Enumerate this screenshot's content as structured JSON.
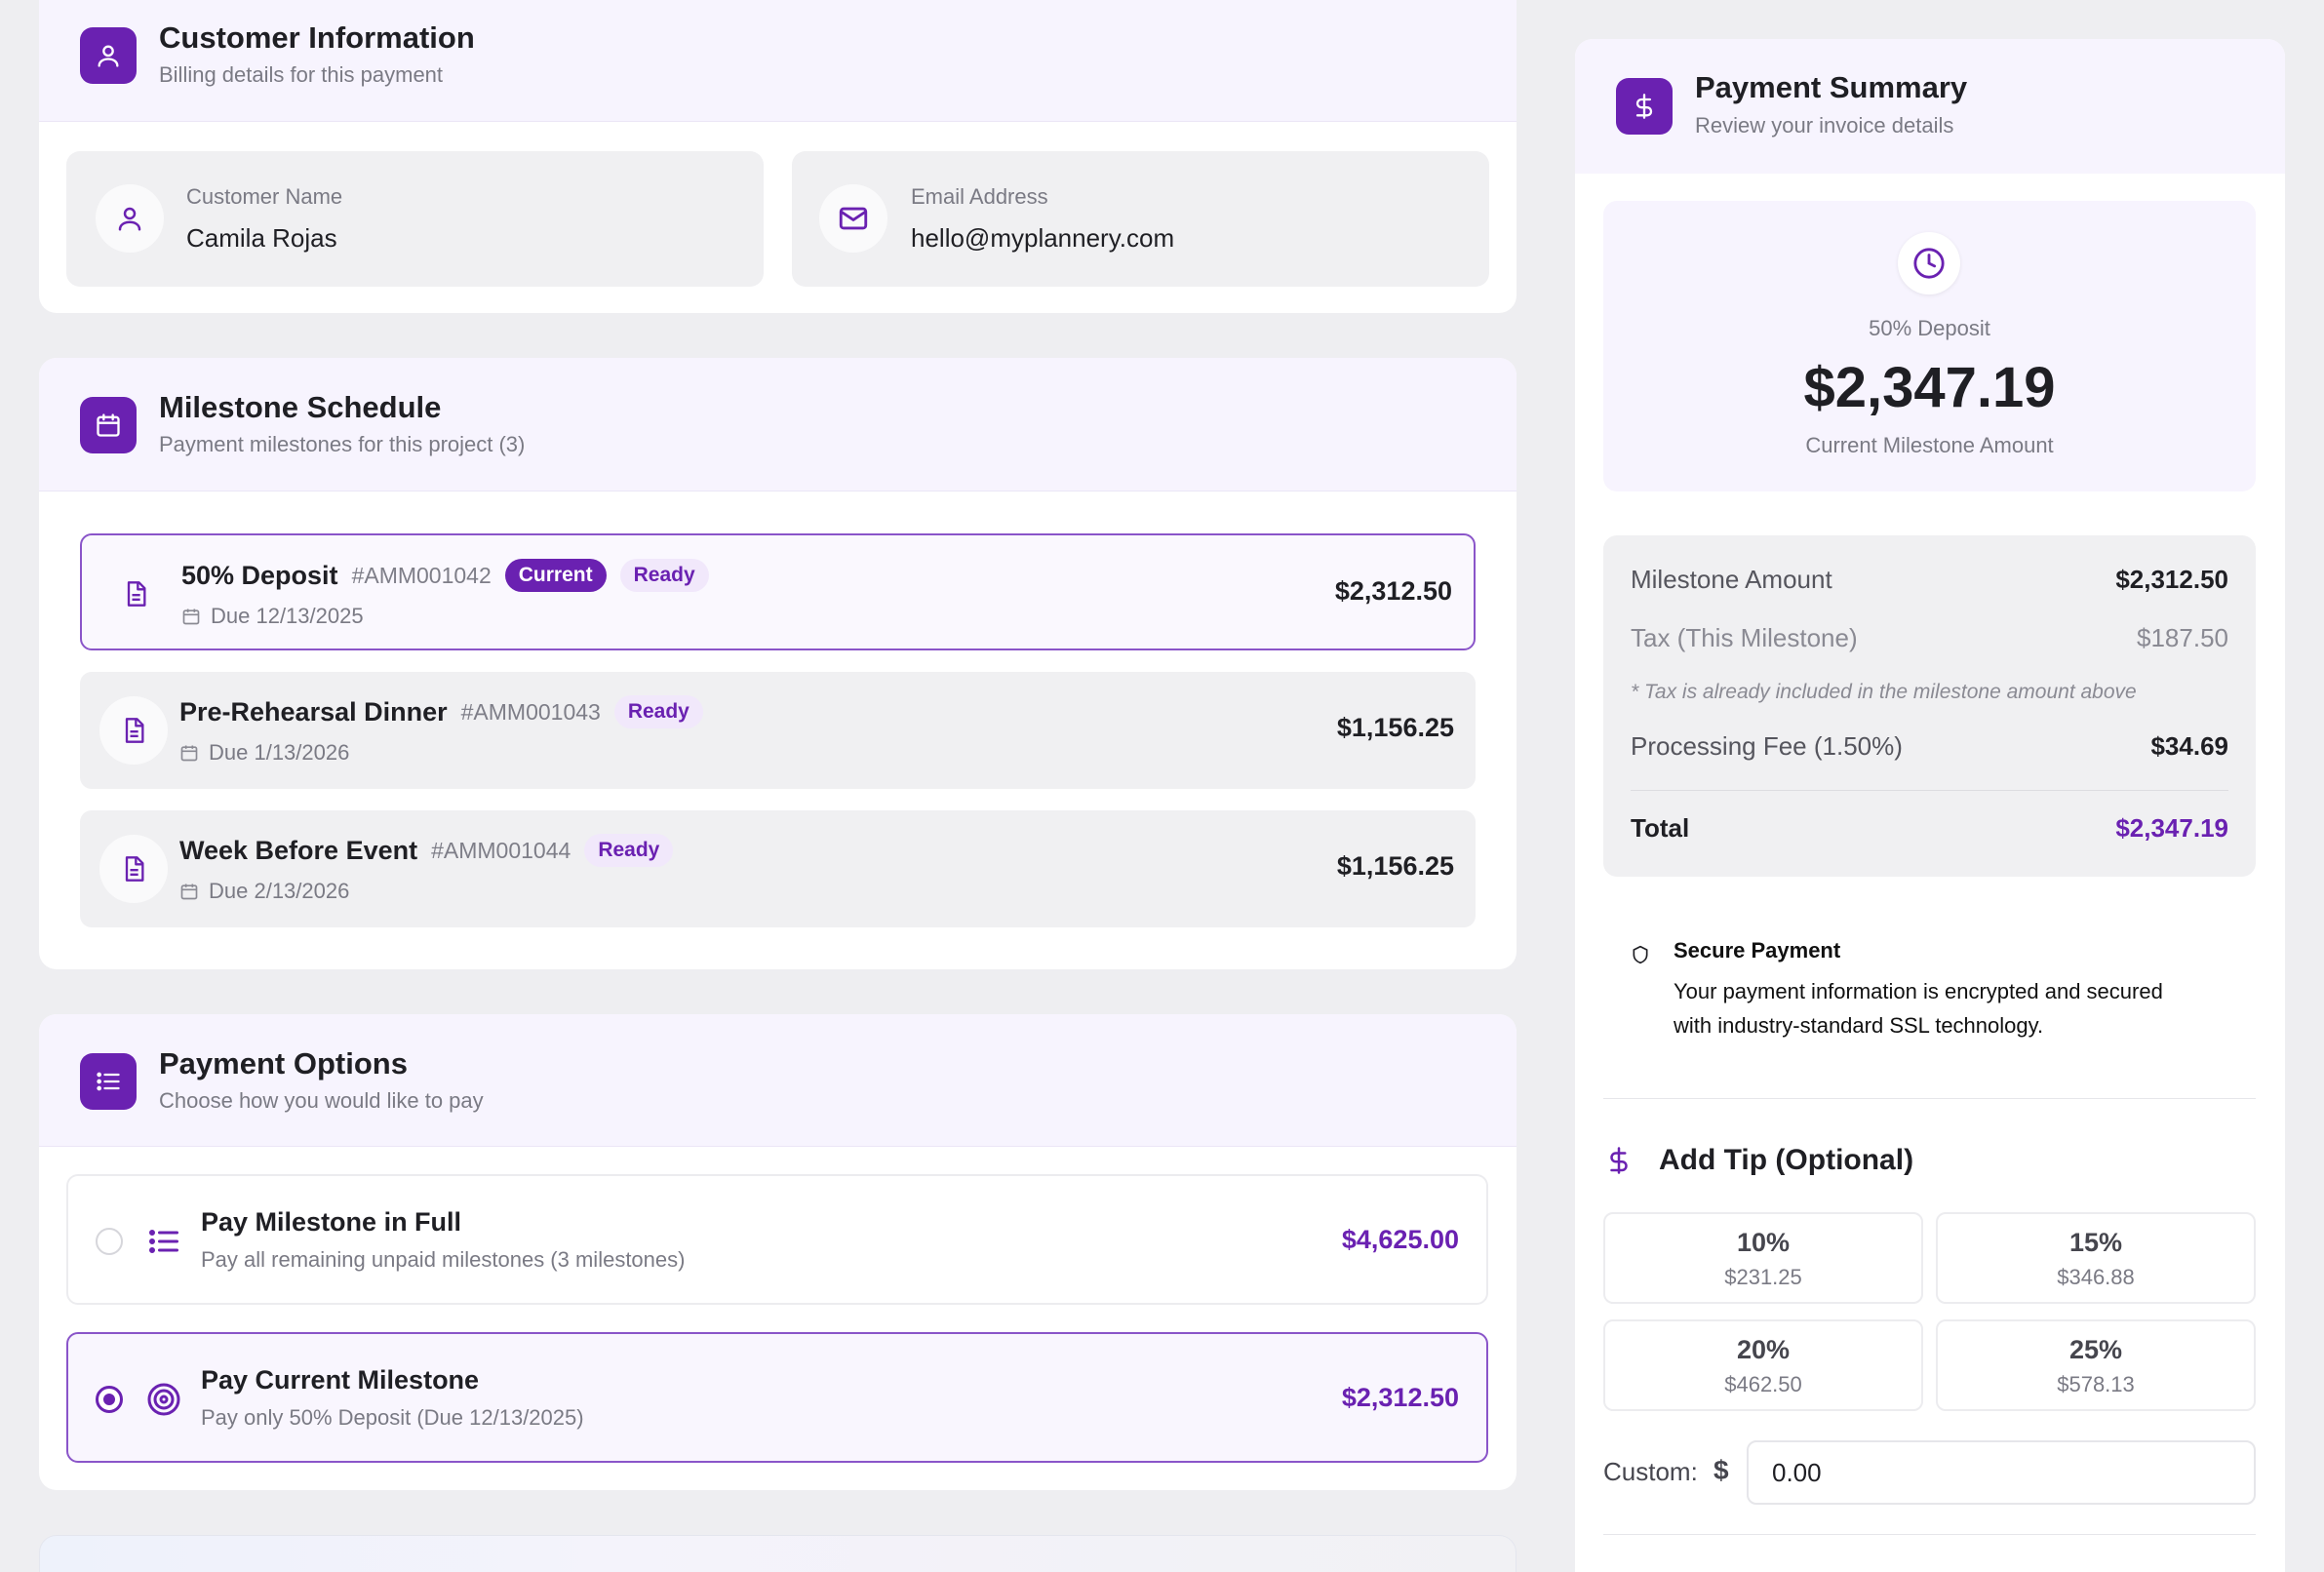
{
  "customer": {
    "title": "Customer Information",
    "subtitle": "Billing details for this payment",
    "name_label": "Customer Name",
    "name_value": "Camila Rojas",
    "email_label": "Email Address",
    "email_value": "hello@myplannery.com"
  },
  "milestones": {
    "title": "Milestone Schedule",
    "subtitle": "Payment milestones for this project (3)",
    "items": [
      {
        "name": "50% Deposit",
        "code": "#AMM001042",
        "badge_current": "Current",
        "badge_status": "Ready",
        "due": "Due 12/13/2025",
        "amount": "$2,312.50"
      },
      {
        "name": "Pre-Rehearsal Dinner",
        "code": "#AMM001043",
        "badge_status": "Ready",
        "due": "Due 1/13/2026",
        "amount": "$1,156.25"
      },
      {
        "name": "Week Before Event",
        "code": "#AMM001044",
        "badge_status": "Ready",
        "due": "Due 2/13/2026",
        "amount": "$1,156.25"
      }
    ]
  },
  "payment_options": {
    "title": "Payment Options",
    "subtitle": "Choose how you would like to pay",
    "options": [
      {
        "title": "Pay Milestone in Full",
        "subtitle": "Pay all remaining unpaid milestones (3 milestones)",
        "amount": "$4,625.00",
        "selected": false
      },
      {
        "title": "Pay Current Milestone",
        "subtitle": "Pay only 50% Deposit (Due 12/13/2025)",
        "amount": "$2,312.50",
        "selected": true
      }
    ]
  },
  "summary": {
    "title": "Payment Summary",
    "subtitle": "Review your invoice details",
    "deposit_label": "50% Deposit",
    "deposit_amount": "$2,347.19",
    "deposit_caption": "Current Milestone Amount",
    "milestone_amount_label": "Milestone Amount",
    "milestone_amount_value": "$2,312.50",
    "tax_label": "Tax (This Milestone)",
    "tax_value": "$187.50",
    "tax_note": "* Tax is already included in the milestone amount above",
    "fee_label": "Processing Fee (1.50%)",
    "fee_value": "$34.69",
    "total_label": "Total",
    "total_value": "$2,347.19",
    "secure_title": "Secure Payment",
    "secure_text_1": "Your payment information is encrypted and secured",
    "secure_text_2": "with industry-standard SSL technology."
  },
  "tip": {
    "title": "Add Tip (Optional)",
    "options": [
      {
        "pct": "10%",
        "amount": "$231.25"
      },
      {
        "pct": "15%",
        "amount": "$346.88"
      },
      {
        "pct": "20%",
        "amount": "$462.50"
      },
      {
        "pct": "25%",
        "amount": "$578.13"
      }
    ],
    "custom_label": "Custom:",
    "currency": "$",
    "custom_value": "0.00"
  },
  "colors": {
    "accent": "#6a21b1",
    "page_background": "#eeeef1",
    "header_tint": "#f7f4fe"
  }
}
